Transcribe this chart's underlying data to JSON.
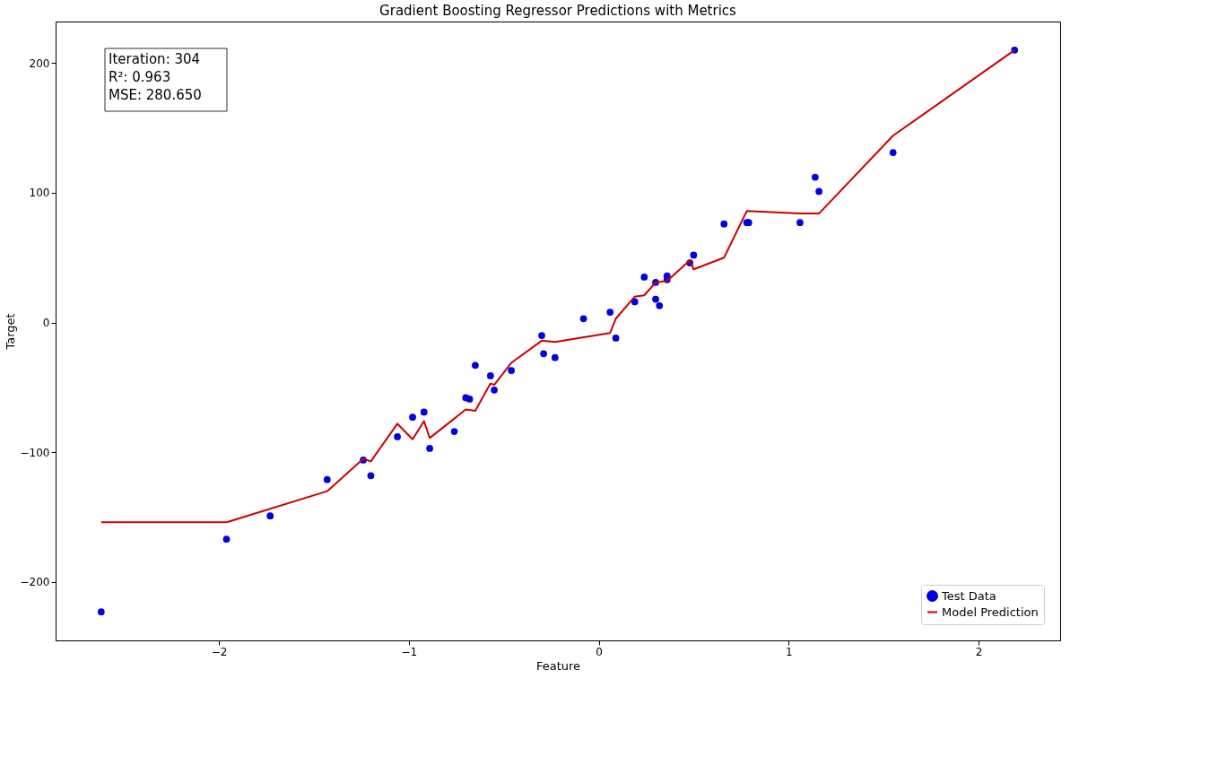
{
  "chart_data": {
    "type": "scatter",
    "title": "Gradient Boosting Regressor Predictions with Metrics",
    "xlabel": "Feature",
    "ylabel": "Target",
    "xlim": [
      -2.86,
      2.43
    ],
    "ylim": [
      -245,
      232
    ],
    "xticks": [
      -2,
      -1,
      0,
      1,
      2
    ],
    "yticks": [
      -200,
      -100,
      0,
      100,
      200
    ],
    "grid": false,
    "legend": "bottom right",
    "annotations": [
      "Iteration: 304",
      "R²: 0.963",
      "MSE: 280.650"
    ],
    "series": [
      {
        "name": "Test Data",
        "marker": "circle",
        "color": "#0000e6",
        "x": [
          -2.62,
          -1.96,
          -1.73,
          -1.43,
          -1.24,
          -1.2,
          -1.06,
          -0.98,
          -0.92,
          -0.89,
          -0.76,
          -0.7,
          -0.68,
          -0.65,
          -0.57,
          -0.55,
          -0.46,
          -0.3,
          -0.29,
          -0.23,
          -0.08,
          0.06,
          0.09,
          0.19,
          0.24,
          0.3,
          0.3,
          0.32,
          0.36,
          0.36,
          0.48,
          0.5,
          0.66,
          0.78,
          0.79,
          1.06,
          1.14,
          1.16,
          1.55,
          2.19
        ],
        "values": [
          -223,
          -167,
          -149,
          -121,
          -106,
          -118,
          -88,
          -73,
          -69,
          -97,
          -84,
          -58,
          -59,
          -33,
          -41,
          -52,
          -37,
          -10,
          -24,
          -27,
          3,
          8,
          -12,
          16,
          35,
          31,
          18,
          13,
          36,
          33,
          46,
          52,
          76,
          77,
          77,
          77,
          112,
          101,
          131,
          210
        ]
      },
      {
        "name": "Model Prediction",
        "type": "line",
        "line_style": "solid",
        "color": "#cc0000",
        "x": [
          -2.62,
          -1.96,
          -1.43,
          -1.24,
          -1.2,
          -1.06,
          -0.98,
          -0.92,
          -0.89,
          -0.76,
          -0.7,
          -0.65,
          -0.57,
          -0.55,
          -0.46,
          -0.3,
          -0.23,
          0.06,
          0.09,
          0.19,
          0.24,
          0.3,
          0.36,
          0.48,
          0.5,
          0.66,
          0.78,
          1.06,
          1.16,
          1.55,
          2.19
        ],
        "values": [
          -154,
          -154,
          -130,
          -105,
          -107,
          -78,
          -90,
          -76,
          -89,
          -74,
          -67,
          -68,
          -47,
          -48,
          -31,
          -14,
          -15,
          -8,
          3,
          20,
          21,
          31,
          32,
          48,
          41,
          50,
          86,
          84,
          84,
          144,
          210
        ]
      }
    ]
  }
}
